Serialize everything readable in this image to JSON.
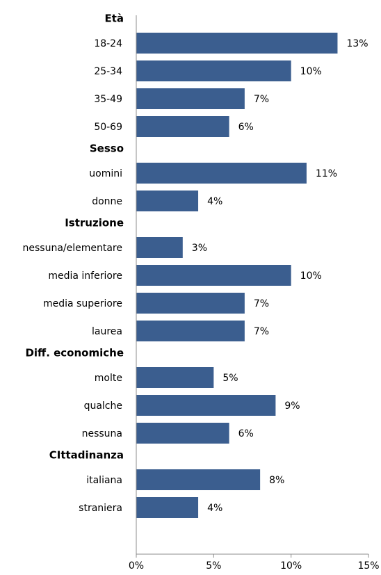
{
  "chart_data": {
    "type": "bar",
    "orientation": "horizontal",
    "xlim": [
      0,
      15
    ],
    "x_ticks": [
      "0%",
      "5%",
      "10%",
      "15%"
    ],
    "grid": false,
    "bar_color": "#3b5e8f",
    "groups": [
      {
        "name": "Età",
        "categories": [
          "18-24",
          "25-34",
          "35-49",
          "50-69"
        ],
        "values": [
          13,
          10,
          7,
          6
        ],
        "labels": [
          "13%",
          "10%",
          "7%",
          "6%"
        ]
      },
      {
        "name": "Sesso",
        "categories": [
          "uomini",
          "donne"
        ],
        "values": [
          11,
          4
        ],
        "labels": [
          "11%",
          "4%"
        ]
      },
      {
        "name": "Istruzione",
        "categories": [
          "nessuna/elementare",
          "media inferiore",
          "media superiore",
          "laurea"
        ],
        "values": [
          3,
          10,
          7,
          7
        ],
        "labels": [
          "3%",
          "10%",
          "7%",
          "7%"
        ]
      },
      {
        "name": "Diff. economiche",
        "categories": [
          "molte",
          "qualche",
          "nessuna"
        ],
        "values": [
          5,
          9,
          6
        ],
        "labels": [
          "5%",
          "9%",
          "6%"
        ]
      },
      {
        "name": "CIttadinanza",
        "categories": [
          "italiana",
          "straniera"
        ],
        "values": [
          8,
          4
        ],
        "labels": [
          "8%",
          "4%"
        ]
      }
    ]
  }
}
